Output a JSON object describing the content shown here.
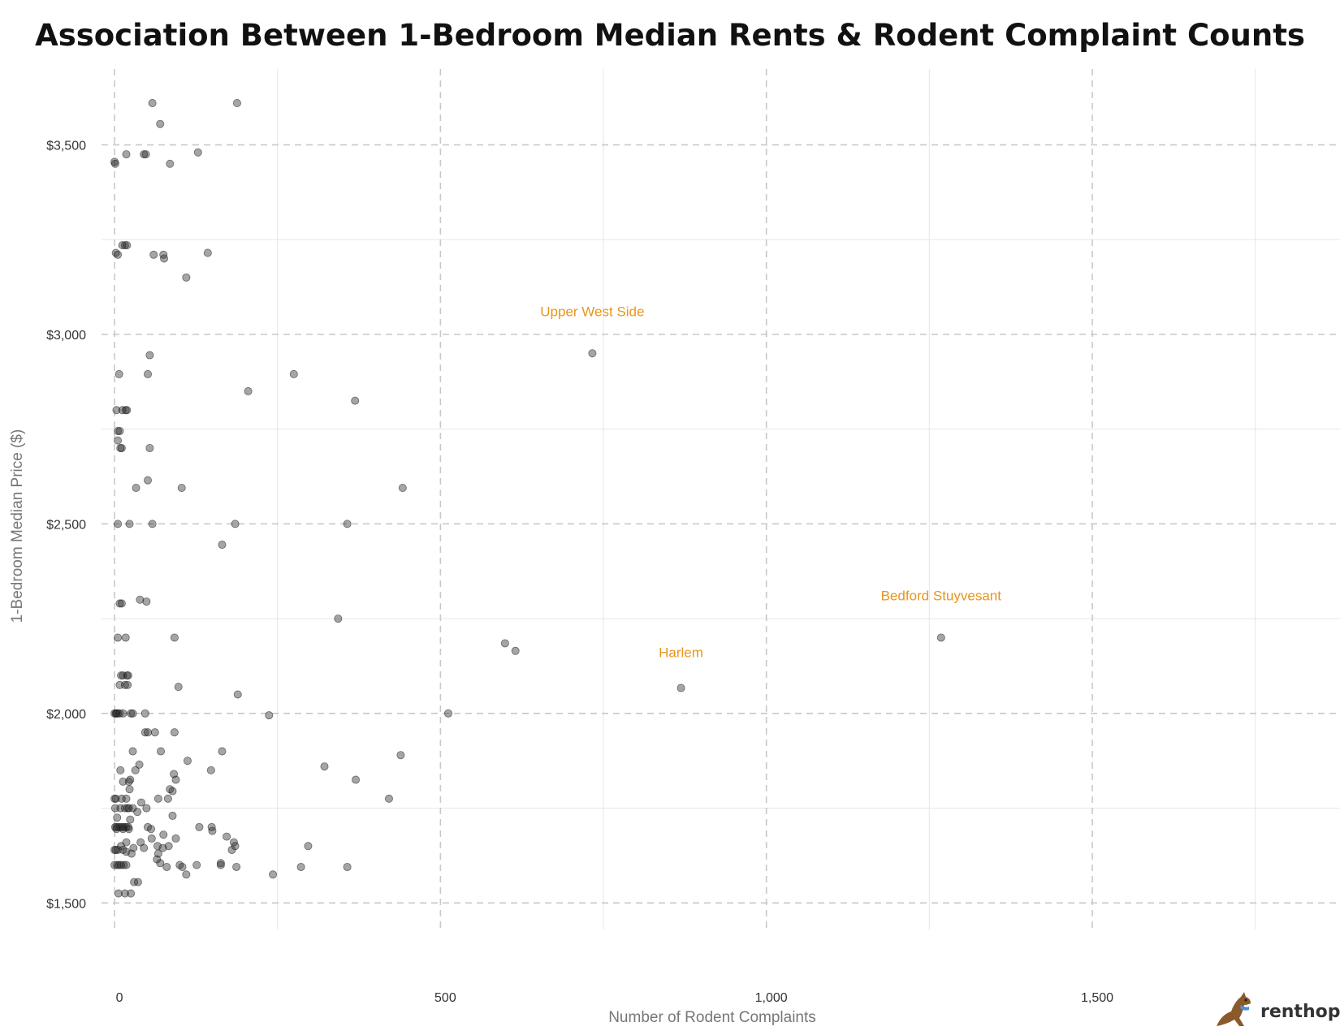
{
  "chart_data": {
    "type": "scatter",
    "title": "Association Between 1-Bedroom Median Rents & Rodent Complaint Counts",
    "xlabel": "Number of Rodent Complaints",
    "ylabel": "1-Bedroom Median Price ($)",
    "xlim": [
      -20,
      1880
    ],
    "ylim": [
      1430,
      3700
    ],
    "x_ticks": [
      0,
      500,
      1000,
      1500
    ],
    "x_tick_labels": [
      "0",
      "500",
      "1,000",
      "1,500"
    ],
    "y_ticks": [
      1500,
      2000,
      2500,
      3000,
      3500
    ],
    "y_tick_labels": [
      "$1,500",
      "$2,000",
      "$2,500",
      "$3,000",
      "$3,500"
    ],
    "grid": true,
    "points": [
      {
        "x": 58,
        "y": 3610
      },
      {
        "x": 188,
        "y": 3610
      },
      {
        "x": 70,
        "y": 3555
      },
      {
        "x": 18,
        "y": 3475
      },
      {
        "x": 45,
        "y": 3475
      },
      {
        "x": 48,
        "y": 3475
      },
      {
        "x": 128,
        "y": 3480
      },
      {
        "x": 0,
        "y": 3455
      },
      {
        "x": 1,
        "y": 3450
      },
      {
        "x": 85,
        "y": 3450
      },
      {
        "x": 12,
        "y": 3235
      },
      {
        "x": 16,
        "y": 3235
      },
      {
        "x": 19,
        "y": 3235
      },
      {
        "x": 2,
        "y": 3215
      },
      {
        "x": 5,
        "y": 3210
      },
      {
        "x": 60,
        "y": 3210
      },
      {
        "x": 75,
        "y": 3210
      },
      {
        "x": 76,
        "y": 3200
      },
      {
        "x": 143,
        "y": 3215
      },
      {
        "x": 110,
        "y": 3150
      },
      {
        "x": 54,
        "y": 2945
      },
      {
        "x": 7,
        "y": 2895
      },
      {
        "x": 51,
        "y": 2895
      },
      {
        "x": 275,
        "y": 2895
      },
      {
        "x": 205,
        "y": 2850
      },
      {
        "x": 369,
        "y": 2825
      },
      {
        "x": 3,
        "y": 2800
      },
      {
        "x": 12,
        "y": 2800
      },
      {
        "x": 17,
        "y": 2800
      },
      {
        "x": 19,
        "y": 2800
      },
      {
        "x": 5,
        "y": 2745
      },
      {
        "x": 8,
        "y": 2745
      },
      {
        "x": 5,
        "y": 2720
      },
      {
        "x": 9,
        "y": 2700
      },
      {
        "x": 11,
        "y": 2700
      },
      {
        "x": 54,
        "y": 2700
      },
      {
        "x": 51,
        "y": 2615
      },
      {
        "x": 33,
        "y": 2595
      },
      {
        "x": 103,
        "y": 2595
      },
      {
        "x": 442,
        "y": 2595
      },
      {
        "x": 5,
        "y": 2500
      },
      {
        "x": 23,
        "y": 2500
      },
      {
        "x": 58,
        "y": 2500
      },
      {
        "x": 185,
        "y": 2500
      },
      {
        "x": 357,
        "y": 2500
      },
      {
        "x": 165,
        "y": 2445
      },
      {
        "x": 39,
        "y": 2300
      },
      {
        "x": 49,
        "y": 2295
      },
      {
        "x": 8,
        "y": 2290
      },
      {
        "x": 11,
        "y": 2290
      },
      {
        "x": 343,
        "y": 2250
      },
      {
        "x": 5,
        "y": 2200
      },
      {
        "x": 17,
        "y": 2200
      },
      {
        "x": 92,
        "y": 2200
      },
      {
        "x": 599,
        "y": 2185
      },
      {
        "x": 615,
        "y": 2165
      },
      {
        "x": 10,
        "y": 2100
      },
      {
        "x": 13,
        "y": 2100
      },
      {
        "x": 19,
        "y": 2100
      },
      {
        "x": 21,
        "y": 2100
      },
      {
        "x": 8,
        "y": 2075
      },
      {
        "x": 16,
        "y": 2075
      },
      {
        "x": 20,
        "y": 2075
      },
      {
        "x": 98,
        "y": 2070
      },
      {
        "x": 189,
        "y": 2050
      },
      {
        "x": 0,
        "y": 2000
      },
      {
        "x": 2,
        "y": 2000
      },
      {
        "x": 3,
        "y": 2000
      },
      {
        "x": 5,
        "y": 2000
      },
      {
        "x": 8,
        "y": 2000
      },
      {
        "x": 13,
        "y": 2000
      },
      {
        "x": 25,
        "y": 2000
      },
      {
        "x": 28,
        "y": 2000
      },
      {
        "x": 47,
        "y": 2000
      },
      {
        "x": 237,
        "y": 1995
      },
      {
        "x": 512,
        "y": 2000
      },
      {
        "x": 47,
        "y": 1950
      },
      {
        "x": 51,
        "y": 1950
      },
      {
        "x": 62,
        "y": 1950
      },
      {
        "x": 92,
        "y": 1950
      },
      {
        "x": 28,
        "y": 1900
      },
      {
        "x": 71,
        "y": 1900
      },
      {
        "x": 165,
        "y": 1900
      },
      {
        "x": 439,
        "y": 1890
      },
      {
        "x": 112,
        "y": 1875
      },
      {
        "x": 38,
        "y": 1865
      },
      {
        "x": 9,
        "y": 1850
      },
      {
        "x": 32,
        "y": 1850
      },
      {
        "x": 148,
        "y": 1850
      },
      {
        "x": 322,
        "y": 1860
      },
      {
        "x": 91,
        "y": 1840
      },
      {
        "x": 24,
        "y": 1825
      },
      {
        "x": 94,
        "y": 1825
      },
      {
        "x": 370,
        "y": 1825
      },
      {
        "x": 22,
        "y": 1820
      },
      {
        "x": 13,
        "y": 1820
      },
      {
        "x": 85,
        "y": 1800
      },
      {
        "x": 23,
        "y": 1800
      },
      {
        "x": 89,
        "y": 1795
      },
      {
        "x": 0,
        "y": 1775
      },
      {
        "x": 2,
        "y": 1775
      },
      {
        "x": 11,
        "y": 1775
      },
      {
        "x": 18,
        "y": 1775
      },
      {
        "x": 67,
        "y": 1775
      },
      {
        "x": 82,
        "y": 1775
      },
      {
        "x": 421,
        "y": 1775
      },
      {
        "x": 41,
        "y": 1765
      },
      {
        "x": 1,
        "y": 1750
      },
      {
        "x": 9,
        "y": 1750
      },
      {
        "x": 16,
        "y": 1750
      },
      {
        "x": 20,
        "y": 1750
      },
      {
        "x": 22,
        "y": 1750
      },
      {
        "x": 28,
        "y": 1750
      },
      {
        "x": 49,
        "y": 1750
      },
      {
        "x": 35,
        "y": 1740
      },
      {
        "x": 89,
        "y": 1730
      },
      {
        "x": 4,
        "y": 1725
      },
      {
        "x": 24,
        "y": 1720
      },
      {
        "x": 1,
        "y": 1700
      },
      {
        "x": 3,
        "y": 1700
      },
      {
        "x": 6,
        "y": 1700
      },
      {
        "x": 9,
        "y": 1700
      },
      {
        "x": 12,
        "y": 1700
      },
      {
        "x": 15,
        "y": 1700
      },
      {
        "x": 18,
        "y": 1700
      },
      {
        "x": 21,
        "y": 1700
      },
      {
        "x": 51,
        "y": 1700
      },
      {
        "x": 130,
        "y": 1700
      },
      {
        "x": 149,
        "y": 1700
      },
      {
        "x": 3,
        "y": 1695
      },
      {
        "x": 13,
        "y": 1695
      },
      {
        "x": 22,
        "y": 1695
      },
      {
        "x": 56,
        "y": 1695
      },
      {
        "x": 150,
        "y": 1690
      },
      {
        "x": 75,
        "y": 1680
      },
      {
        "x": 172,
        "y": 1675
      },
      {
        "x": 57,
        "y": 1670
      },
      {
        "x": 94,
        "y": 1670
      },
      {
        "x": 183,
        "y": 1660
      },
      {
        "x": 40,
        "y": 1660
      },
      {
        "x": 18,
        "y": 1660
      },
      {
        "x": 83,
        "y": 1650
      },
      {
        "x": 66,
        "y": 1650
      },
      {
        "x": 29,
        "y": 1645
      },
      {
        "x": 45,
        "y": 1645
      },
      {
        "x": 74,
        "y": 1645
      },
      {
        "x": 297,
        "y": 1650
      },
      {
        "x": 10,
        "y": 1650
      },
      {
        "x": 0,
        "y": 1640
      },
      {
        "x": 2,
        "y": 1640
      },
      {
        "x": 5,
        "y": 1640
      },
      {
        "x": 13,
        "y": 1640
      },
      {
        "x": 180,
        "y": 1640
      },
      {
        "x": 185,
        "y": 1650
      },
      {
        "x": 18,
        "y": 1635
      },
      {
        "x": 67,
        "y": 1630
      },
      {
        "x": 26,
        "y": 1630
      },
      {
        "x": 65,
        "y": 1615
      },
      {
        "x": 70,
        "y": 1605
      },
      {
        "x": 0,
        "y": 1600
      },
      {
        "x": 4,
        "y": 1600
      },
      {
        "x": 7,
        "y": 1600
      },
      {
        "x": 10,
        "y": 1600
      },
      {
        "x": 14,
        "y": 1600
      },
      {
        "x": 18,
        "y": 1600
      },
      {
        "x": 80,
        "y": 1595
      },
      {
        "x": 100,
        "y": 1600
      },
      {
        "x": 104,
        "y": 1595
      },
      {
        "x": 126,
        "y": 1600
      },
      {
        "x": 163,
        "y": 1605
      },
      {
        "x": 163,
        "y": 1600
      },
      {
        "x": 187,
        "y": 1595
      },
      {
        "x": 286,
        "y": 1595
      },
      {
        "x": 357,
        "y": 1595
      },
      {
        "x": 110,
        "y": 1575
      },
      {
        "x": 243,
        "y": 1575
      },
      {
        "x": 30,
        "y": 1555
      },
      {
        "x": 36,
        "y": 1555
      },
      {
        "x": 6,
        "y": 1525
      },
      {
        "x": 16,
        "y": 1525
      },
      {
        "x": 25,
        "y": 1525
      },
      {
        "x": 733,
        "y": 2950
      },
      {
        "x": 869,
        "y": 2067
      },
      {
        "x": 1268,
        "y": 2200
      }
    ],
    "annotations": [
      {
        "text": "Upper West Side",
        "x": 733,
        "y": 3048
      },
      {
        "text": "Bedford Stuyvesant",
        "x": 1268,
        "y": 2298
      },
      {
        "text": "Harlem",
        "x": 869,
        "y": 2148
      }
    ]
  },
  "branding": {
    "name": "renthop",
    "colors": {
      "logo_body": "#8a5a2b",
      "logo_scarf": "#4a90d9",
      "annotation": "#e8951c"
    }
  }
}
